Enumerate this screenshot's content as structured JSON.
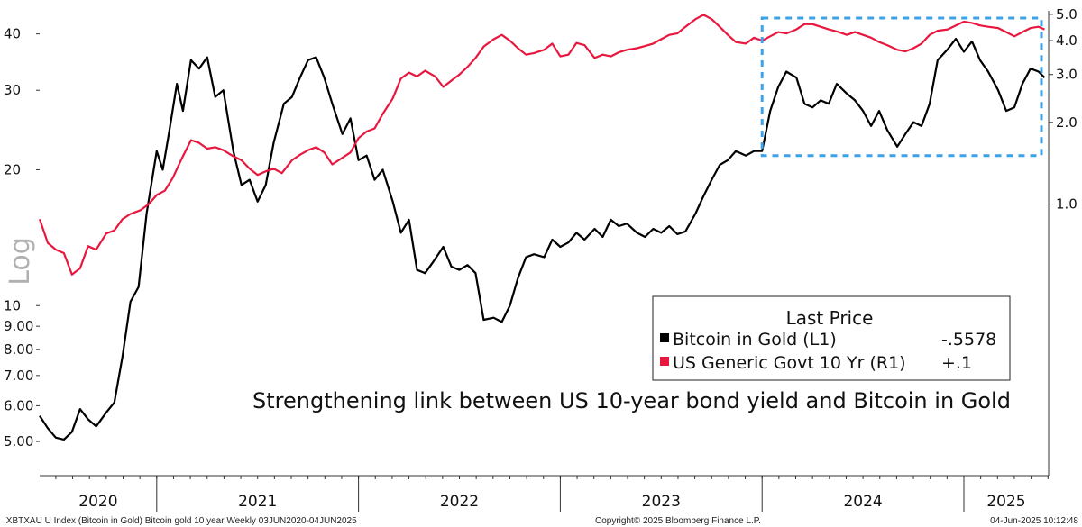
{
  "chart_data": {
    "type": "line",
    "axis_label": "Log",
    "left_ticks": [
      {
        "value": 40,
        "label": "40"
      },
      {
        "value": 30,
        "label": "30"
      },
      {
        "value": 20,
        "label": "20"
      },
      {
        "value": 10,
        "label": "10"
      },
      {
        "value": 9,
        "label": "9.00"
      },
      {
        "value": 8,
        "label": "8.00"
      },
      {
        "value": 7,
        "label": "7.00"
      },
      {
        "value": 6,
        "label": "6.00"
      },
      {
        "value": 5,
        "label": "5.00"
      }
    ],
    "right_ticks": [
      {
        "value": 5.0,
        "label": "5.0"
      },
      {
        "value": 4.0,
        "label": "4.0"
      },
      {
        "value": 3.0,
        "label": "3.0"
      },
      {
        "value": 2.0,
        "label": "2.0"
      },
      {
        "value": 1.0,
        "label": "1.0"
      }
    ],
    "ylim_left": [
      4.2,
      45
    ],
    "ylim_right": [
      0.1,
      5.15
    ],
    "x_range": [
      2020.42,
      2025.42
    ],
    "years": [
      {
        "label": "2020",
        "start": 2020.42,
        "end": 2021.0
      },
      {
        "label": "2021",
        "start": 2021.0,
        "end": 2022.0
      },
      {
        "label": "2022",
        "start": 2022.0,
        "end": 2023.0
      },
      {
        "label": "2023",
        "start": 2023.0,
        "end": 2024.0
      },
      {
        "label": "2024",
        "start": 2024.0,
        "end": 2025.0
      },
      {
        "label": "2025",
        "start": 2025.0,
        "end": 2025.42
      }
    ],
    "series": [
      {
        "name": "Bitcoin in Gold  (L1)",
        "axis": "left",
        "color": "#000000",
        "last_value": "-.5578",
        "points": [
          [
            2020.42,
            5.7
          ],
          [
            2020.46,
            5.35
          ],
          [
            2020.5,
            5.1
          ],
          [
            2020.54,
            5.05
          ],
          [
            2020.58,
            5.25
          ],
          [
            2020.62,
            5.9
          ],
          [
            2020.66,
            5.6
          ],
          [
            2020.7,
            5.4
          ],
          [
            2020.75,
            5.8
          ],
          [
            2020.79,
            6.1
          ],
          [
            2020.83,
            7.7
          ],
          [
            2020.87,
            10.2
          ],
          [
            2020.91,
            11.0
          ],
          [
            2020.95,
            16.0
          ],
          [
            2021.0,
            22.0
          ],
          [
            2021.03,
            20.0
          ],
          [
            2021.06,
            24.0
          ],
          [
            2021.1,
            31.0
          ],
          [
            2021.13,
            27.0
          ],
          [
            2021.17,
            35.0
          ],
          [
            2021.21,
            33.5
          ],
          [
            2021.25,
            35.5
          ],
          [
            2021.29,
            29.0
          ],
          [
            2021.33,
            30.0
          ],
          [
            2021.38,
            22.0
          ],
          [
            2021.42,
            18.5
          ],
          [
            2021.46,
            19.0
          ],
          [
            2021.5,
            17.0
          ],
          [
            2021.54,
            18.5
          ],
          [
            2021.58,
            23.0
          ],
          [
            2021.63,
            28.0
          ],
          [
            2021.67,
            29.0
          ],
          [
            2021.71,
            32.0
          ],
          [
            2021.75,
            35.0
          ],
          [
            2021.79,
            35.5
          ],
          [
            2021.83,
            32.0
          ],
          [
            2021.87,
            28.0
          ],
          [
            2021.92,
            24.0
          ],
          [
            2021.96,
            26.0
          ],
          [
            2022.0,
            21.0
          ],
          [
            2022.04,
            21.5
          ],
          [
            2022.08,
            19.0
          ],
          [
            2022.12,
            20.0
          ],
          [
            2022.17,
            17.0
          ],
          [
            2022.21,
            14.5
          ],
          [
            2022.25,
            15.5
          ],
          [
            2022.29,
            12.0
          ],
          [
            2022.33,
            11.8
          ],
          [
            2022.37,
            12.5
          ],
          [
            2022.42,
            13.5
          ],
          [
            2022.46,
            12.2
          ],
          [
            2022.5,
            12.0
          ],
          [
            2022.54,
            12.3
          ],
          [
            2022.58,
            11.8
          ],
          [
            2022.62,
            9.3
          ],
          [
            2022.67,
            9.4
          ],
          [
            2022.71,
            9.2
          ],
          [
            2022.75,
            10.0
          ],
          [
            2022.79,
            11.5
          ],
          [
            2022.83,
            12.8
          ],
          [
            2022.87,
            13.0
          ],
          [
            2022.92,
            12.8
          ],
          [
            2022.96,
            14.0
          ],
          [
            2023.0,
            13.5
          ],
          [
            2023.04,
            13.8
          ],
          [
            2023.08,
            14.5
          ],
          [
            2023.12,
            14.0
          ],
          [
            2023.17,
            14.8
          ],
          [
            2023.21,
            14.2
          ],
          [
            2023.25,
            15.5
          ],
          [
            2023.29,
            15.0
          ],
          [
            2023.33,
            15.2
          ],
          [
            2023.38,
            14.5
          ],
          [
            2023.42,
            14.2
          ],
          [
            2023.46,
            14.8
          ],
          [
            2023.5,
            14.5
          ],
          [
            2023.54,
            15.0
          ],
          [
            2023.58,
            14.4
          ],
          [
            2023.62,
            14.6
          ],
          [
            2023.67,
            16.0
          ],
          [
            2023.71,
            17.5
          ],
          [
            2023.75,
            19.0
          ],
          [
            2023.79,
            20.5
          ],
          [
            2023.83,
            21.0
          ],
          [
            2023.87,
            22.0
          ],
          [
            2023.92,
            21.5
          ],
          [
            2023.96,
            22.0
          ],
          [
            2024.0,
            22.0
          ],
          [
            2024.04,
            27.0
          ],
          [
            2024.08,
            30.5
          ],
          [
            2024.12,
            33.0
          ],
          [
            2024.17,
            32.0
          ],
          [
            2024.21,
            28.0
          ],
          [
            2024.25,
            27.5
          ],
          [
            2024.29,
            28.5
          ],
          [
            2024.33,
            28.0
          ],
          [
            2024.37,
            31.0
          ],
          [
            2024.42,
            29.5
          ],
          [
            2024.46,
            28.5
          ],
          [
            2024.5,
            27.0
          ],
          [
            2024.54,
            25.0
          ],
          [
            2024.58,
            27.0
          ],
          [
            2024.62,
            24.5
          ],
          [
            2024.67,
            22.5
          ],
          [
            2024.71,
            24.0
          ],
          [
            2024.75,
            25.5
          ],
          [
            2024.79,
            25.0
          ],
          [
            2024.83,
            28.0
          ],
          [
            2024.87,
            35.0
          ],
          [
            2024.92,
            37.0
          ],
          [
            2024.96,
            39.0
          ],
          [
            2025.0,
            36.5
          ],
          [
            2025.04,
            38.5
          ],
          [
            2025.08,
            35.0
          ],
          [
            2025.12,
            33.0
          ],
          [
            2025.17,
            30.0
          ],
          [
            2025.21,
            27.0
          ],
          [
            2025.25,
            27.5
          ],
          [
            2025.29,
            31.0
          ],
          [
            2025.33,
            33.5
          ],
          [
            2025.37,
            33.0
          ],
          [
            2025.4,
            32.0
          ]
        ]
      },
      {
        "name": "US Generic Govt 10 Yr  (R1)",
        "axis": "right",
        "color": "#e8173e",
        "last_value": "+.1",
        "points": [
          [
            2020.42,
            0.88
          ],
          [
            2020.46,
            0.72
          ],
          [
            2020.5,
            0.68
          ],
          [
            2020.54,
            0.66
          ],
          [
            2020.58,
            0.55
          ],
          [
            2020.62,
            0.58
          ],
          [
            2020.66,
            0.7
          ],
          [
            2020.7,
            0.68
          ],
          [
            2020.75,
            0.78
          ],
          [
            2020.79,
            0.8
          ],
          [
            2020.83,
            0.88
          ],
          [
            2020.87,
            0.92
          ],
          [
            2020.92,
            0.95
          ],
          [
            2020.96,
            1.0
          ],
          [
            2021.0,
            1.08
          ],
          [
            2021.04,
            1.12
          ],
          [
            2021.08,
            1.25
          ],
          [
            2021.12,
            1.45
          ],
          [
            2021.17,
            1.72
          ],
          [
            2021.21,
            1.68
          ],
          [
            2021.25,
            1.6
          ],
          [
            2021.29,
            1.62
          ],
          [
            2021.33,
            1.58
          ],
          [
            2021.38,
            1.5
          ],
          [
            2021.42,
            1.45
          ],
          [
            2021.46,
            1.35
          ],
          [
            2021.5,
            1.28
          ],
          [
            2021.54,
            1.32
          ],
          [
            2021.58,
            1.35
          ],
          [
            2021.62,
            1.3
          ],
          [
            2021.67,
            1.45
          ],
          [
            2021.71,
            1.52
          ],
          [
            2021.75,
            1.58
          ],
          [
            2021.79,
            1.62
          ],
          [
            2021.83,
            1.55
          ],
          [
            2021.87,
            1.4
          ],
          [
            2021.92,
            1.48
          ],
          [
            2021.96,
            1.55
          ],
          [
            2022.0,
            1.75
          ],
          [
            2022.04,
            1.85
          ],
          [
            2022.08,
            1.9
          ],
          [
            2022.12,
            2.15
          ],
          [
            2022.17,
            2.45
          ],
          [
            2022.21,
            2.9
          ],
          [
            2022.25,
            3.05
          ],
          [
            2022.29,
            2.95
          ],
          [
            2022.33,
            3.1
          ],
          [
            2022.38,
            2.95
          ],
          [
            2022.42,
            2.7
          ],
          [
            2022.46,
            2.85
          ],
          [
            2022.5,
            3.0
          ],
          [
            2022.54,
            3.2
          ],
          [
            2022.58,
            3.45
          ],
          [
            2022.62,
            3.8
          ],
          [
            2022.67,
            4.05
          ],
          [
            2022.71,
            4.2
          ],
          [
            2022.75,
            4.0
          ],
          [
            2022.79,
            3.75
          ],
          [
            2022.83,
            3.55
          ],
          [
            2022.87,
            3.6
          ],
          [
            2022.92,
            3.7
          ],
          [
            2022.96,
            3.9
          ],
          [
            2023.0,
            3.5
          ],
          [
            2023.04,
            3.55
          ],
          [
            2023.08,
            3.92
          ],
          [
            2023.12,
            3.85
          ],
          [
            2023.17,
            3.45
          ],
          [
            2023.21,
            3.55
          ],
          [
            2023.25,
            3.5
          ],
          [
            2023.29,
            3.62
          ],
          [
            2023.33,
            3.7
          ],
          [
            2023.38,
            3.75
          ],
          [
            2023.42,
            3.82
          ],
          [
            2023.46,
            3.9
          ],
          [
            2023.5,
            4.05
          ],
          [
            2023.54,
            4.2
          ],
          [
            2023.58,
            4.25
          ],
          [
            2023.62,
            4.5
          ],
          [
            2023.67,
            4.8
          ],
          [
            2023.71,
            4.98
          ],
          [
            2023.75,
            4.8
          ],
          [
            2023.79,
            4.5
          ],
          [
            2023.83,
            4.2
          ],
          [
            2023.87,
            3.95
          ],
          [
            2023.92,
            3.9
          ],
          [
            2023.96,
            4.1
          ],
          [
            2024.0,
            4.0
          ],
          [
            2024.04,
            4.15
          ],
          [
            2024.08,
            4.3
          ],
          [
            2024.12,
            4.25
          ],
          [
            2024.17,
            4.4
          ],
          [
            2024.21,
            4.6
          ],
          [
            2024.25,
            4.6
          ],
          [
            2024.29,
            4.5
          ],
          [
            2024.33,
            4.4
          ],
          [
            2024.38,
            4.3
          ],
          [
            2024.42,
            4.2
          ],
          [
            2024.46,
            4.3
          ],
          [
            2024.5,
            4.2
          ],
          [
            2024.54,
            4.1
          ],
          [
            2024.58,
            3.95
          ],
          [
            2024.62,
            3.85
          ],
          [
            2024.67,
            3.7
          ],
          [
            2024.71,
            3.65
          ],
          [
            2024.75,
            3.75
          ],
          [
            2024.79,
            3.9
          ],
          [
            2024.83,
            4.2
          ],
          [
            2024.87,
            4.35
          ],
          [
            2024.92,
            4.4
          ],
          [
            2024.96,
            4.55
          ],
          [
            2025.0,
            4.7
          ],
          [
            2025.04,
            4.65
          ],
          [
            2025.08,
            4.55
          ],
          [
            2025.12,
            4.5
          ],
          [
            2025.17,
            4.45
          ],
          [
            2025.21,
            4.3
          ],
          [
            2025.25,
            4.15
          ],
          [
            2025.29,
            4.3
          ],
          [
            2025.33,
            4.45
          ],
          [
            2025.37,
            4.5
          ],
          [
            2025.4,
            4.4
          ]
        ]
      }
    ],
    "legend": {
      "title": "Last Price",
      "placement": "bottom-right"
    },
    "annotation": "Strengthening link between US 10-year bond yield and Bitcoin in Gold",
    "highlight_box": {
      "x": [
        2024.0,
        2025.52
      ],
      "y_left": [
        21.5,
        44
      ],
      "style": "dashed",
      "color": "#3da2e8"
    }
  },
  "footer": {
    "left": ".XBTXAU U Index (Bitcoin in Gold) Bitcoin gold 10 year  Weekly 03JUN2020-04JUN2025",
    "center": "Copyright© 2025 Bloomberg Finance L.P.",
    "right": "04-Jun-2025 10:12:48"
  }
}
